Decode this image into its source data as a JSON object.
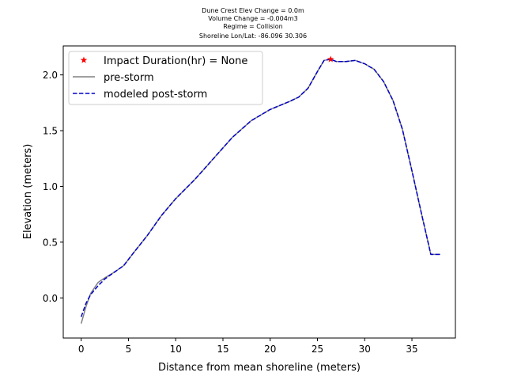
{
  "chart_data": {
    "type": "line",
    "title_lines": [
      "Dune Crest Elev Change = 0.0m",
      "Volume Change = -0.004m3",
      "Regime = Collision",
      "Shoreline Lon/Lat: -86.096 30.306"
    ],
    "xlabel": "Distance from mean shoreline (meters)",
    "ylabel": "Elevation (meters)",
    "xlim": [
      -1.9,
      39.6
    ],
    "ylim": [
      -0.36,
      2.26
    ],
    "xticks": [
      0,
      5,
      10,
      15,
      20,
      25,
      30,
      35
    ],
    "yticks": [
      0.0,
      0.5,
      1.0,
      1.5,
      2.0
    ],
    "ytick_labels": [
      "0.0",
      "0.5",
      "1.0",
      "1.5",
      "2.0"
    ],
    "grid": false,
    "legend_position": "top-left",
    "legend": [
      {
        "label": "Impact Duration(hr) = None",
        "style": "star",
        "color": "#ff0000"
      },
      {
        "label": "pre-storm",
        "style": "solid",
        "color": "#808080"
      },
      {
        "label": "modeled post-storm",
        "style": "dashed",
        "color": "#0000cc"
      }
    ],
    "series": [
      {
        "name": "pre-storm",
        "color": "#808080",
        "style": "solid",
        "x": [
          0,
          0.5,
          1.0,
          1.8,
          2.5,
          3.5,
          4.5,
          5.5,
          7.0,
          8.5,
          10.0,
          12.0,
          14.0,
          16.0,
          18.0,
          20.0,
          22.0,
          23.0,
          24.0,
          25.0,
          25.7,
          26.4,
          27.0,
          28.0,
          29.0,
          30.0,
          31.0,
          32.0,
          33.0,
          34.0,
          35.0,
          36.0,
          37.0,
          38.0
        ],
        "y": [
          -0.23,
          -0.08,
          0.04,
          0.14,
          0.18,
          0.23,
          0.29,
          0.4,
          0.56,
          0.74,
          0.89,
          1.06,
          1.25,
          1.44,
          1.59,
          1.69,
          1.76,
          1.8,
          1.88,
          2.03,
          2.13,
          2.14,
          2.12,
          2.12,
          2.13,
          2.1,
          2.05,
          1.94,
          1.77,
          1.51,
          1.14,
          0.76,
          0.39,
          0.39
        ]
      },
      {
        "name": "modeled post-storm",
        "color": "#0000cc",
        "style": "dashed",
        "x": [
          0,
          0.5,
          1.0,
          1.8,
          2.5,
          3.5,
          4.5,
          5.5,
          7.0,
          8.5,
          10.0,
          12.0,
          14.0,
          16.0,
          18.0,
          20.0,
          22.0,
          23.0,
          24.0,
          25.0,
          25.7,
          26.4,
          27.0,
          28.0,
          29.0,
          30.0,
          31.0,
          32.0,
          33.0,
          34.0,
          35.0,
          36.0,
          37.0,
          38.0
        ],
        "y": [
          -0.17,
          -0.05,
          0.03,
          0.11,
          0.17,
          0.23,
          0.29,
          0.4,
          0.56,
          0.74,
          0.89,
          1.06,
          1.25,
          1.44,
          1.59,
          1.69,
          1.76,
          1.8,
          1.88,
          2.03,
          2.13,
          2.14,
          2.12,
          2.12,
          2.13,
          2.1,
          2.05,
          1.94,
          1.77,
          1.51,
          1.14,
          0.76,
          0.39,
          0.39
        ]
      }
    ],
    "markers": [
      {
        "name": "Impact Duration(hr) = None",
        "x": 26.4,
        "y": 2.14,
        "color": "#ff0000",
        "shape": "star"
      }
    ]
  }
}
